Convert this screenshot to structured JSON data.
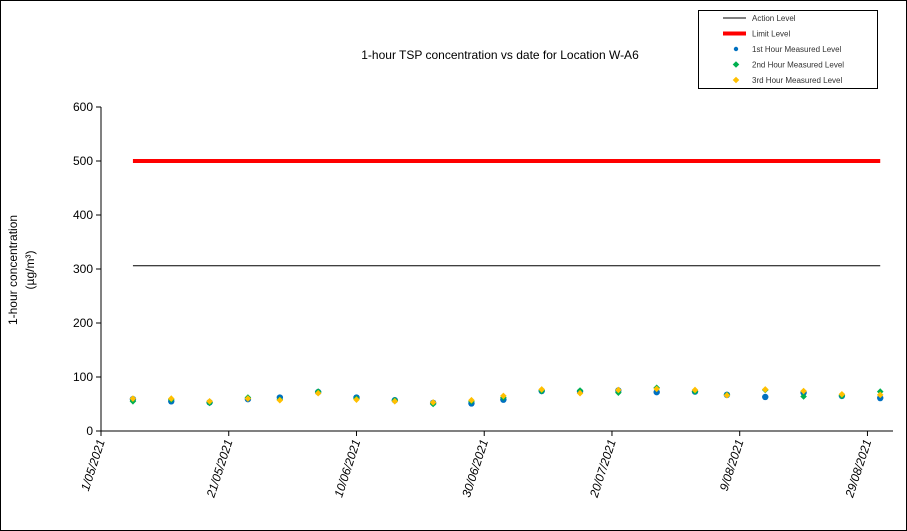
{
  "chart_data": {
    "type": "line",
    "title": "1-hour TSP concentration vs date for Location  W-A6",
    "y_label": [
      "1-hour concentration",
      "(µg/m³)"
    ],
    "x": [
      "6/05/2021",
      "12/05/2021",
      "18/05/2021",
      "24/05/2021",
      "29/05/2021",
      "4/06/2021",
      "10/06/2021",
      "16/06/2021",
      "22/06/2021",
      "28/06/2021",
      "3/07/2021",
      "9/07/2021",
      "15/07/2021",
      "21/07/2021",
      "27/07/2021",
      "2/08/2021",
      "7/08/2021",
      "13/08/2021",
      "19/08/2021",
      "25/08/2021",
      "31/08/2021"
    ],
    "xlim": [
      "1/05/2021",
      "2/09/2021"
    ],
    "xticks": [
      "1/05/2021",
      "21/05/2021",
      "10/06/2021",
      "30/06/2021",
      "20/07/2021",
      "9/08/2021",
      "29/08/2021"
    ],
    "ylim": [
      0,
      600
    ],
    "yticks": [
      0,
      100,
      200,
      300,
      400,
      500,
      600
    ],
    "series": [
      {
        "name": "Action Level",
        "color": "#000000",
        "style": "line",
        "values": [
          306,
          306,
          306,
          306,
          306,
          306,
          306,
          306,
          306,
          306,
          306,
          306,
          306,
          306,
          306,
          306,
          306,
          306,
          306,
          306,
          306
        ]
      },
      {
        "name": "Limit Level",
        "color": "#ff0000",
        "style": "line",
        "values": [
          500,
          500,
          500,
          500,
          500,
          500,
          500,
          500,
          500,
          500,
          500,
          500,
          500,
          500,
          500,
          500,
          500,
          500,
          500,
          500,
          500
        ]
      },
      {
        "name": "1st Hour Measured Level",
        "color": "#0070c0",
        "style": "circle",
        "values": [
          59,
          55,
          53,
          59,
          62,
          72,
          62,
          57,
          52,
          51,
          58,
          74,
          73,
          75,
          72,
          73,
          67,
          63,
          71,
          65,
          61
        ]
      },
      {
        "name": "2nd Hour Measured Level",
        "color": "#00b050",
        "style": "diamond",
        "values": [
          55,
          58,
          52,
          62,
          58,
          73,
          60,
          57,
          50,
          55,
          62,
          74,
          75,
          71,
          80,
          73,
          67,
          76,
          64,
          65,
          73
        ]
      },
      {
        "name": "3rd Hour Measured Level",
        "color": "#ffc000",
        "style": "diamond",
        "values": [
          60,
          60,
          55,
          60,
          57,
          70,
          58,
          55,
          53,
          57,
          65,
          77,
          70,
          76,
          78,
          76,
          66,
          77,
          74,
          68,
          67
        ]
      }
    ]
  }
}
